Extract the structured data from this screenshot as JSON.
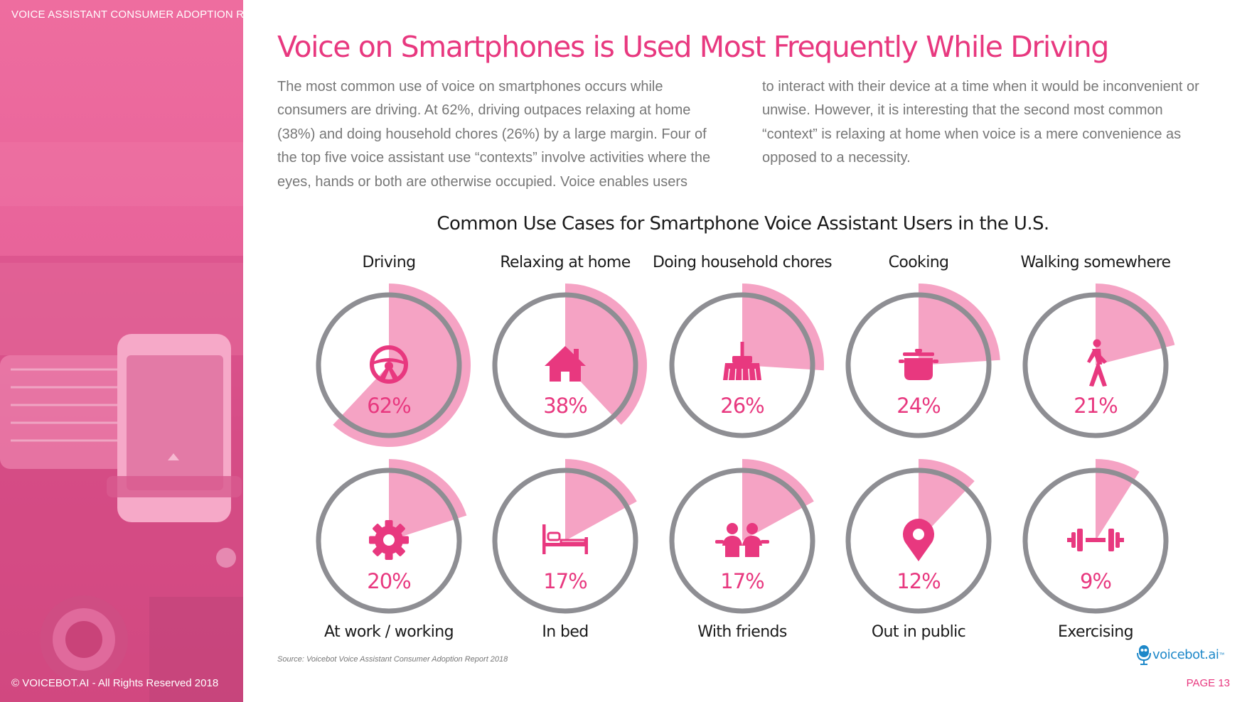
{
  "header": {
    "report_title": "VOICE ASSISTANT CONSUMER ADOPTION REPORT"
  },
  "page": {
    "title": "Voice on Smartphones is Used Most Frequently While Driving",
    "body_left": "The most common use of voice on smartphones occurs while consumers are driving. At 62%, driving outpaces relaxing at home (38%) and doing household chores (26%) by a large margin. Four of the top five voice assistant use “contexts” involve activities where the eyes, hands or both are otherwise occupied. Voice enables users",
    "body_right": "to interact with their device at a time when it would be inconvenient or unwise. However, it is interesting that the second most common “context” is relaxing at home when voice is a mere convenience as opposed to a necessity."
  },
  "colors": {
    "accent": "#e8387f",
    "wedge": "#f5a3c4",
    "ring": "#8e8e93",
    "icon": "#e8387f",
    "panel": "#e8639a"
  },
  "chart_data": {
    "type": "pie",
    "title": "Common Use Cases for Smartphone Voice Assistant Users in the U.S.",
    "unit": "%",
    "items": [
      {
        "label": "Driving",
        "value": 62,
        "display": "62%",
        "icon": "steering-wheel-icon",
        "label_position": "top"
      },
      {
        "label": "Relaxing at home",
        "value": 38,
        "display": "38%",
        "icon": "house-icon",
        "label_position": "top"
      },
      {
        "label": "Doing household chores",
        "value": 26,
        "display": "26%",
        "icon": "broom-icon",
        "label_position": "top"
      },
      {
        "label": "Cooking",
        "value": 24,
        "display": "24%",
        "icon": "cooking-pot-icon",
        "label_position": "top"
      },
      {
        "label": "Walking somewhere",
        "value": 21,
        "display": "21%",
        "icon": "walking-person-icon",
        "label_position": "top"
      },
      {
        "label": "At work / working",
        "value": 20,
        "display": "20%",
        "icon": "gear-icon",
        "label_position": "bottom"
      },
      {
        "label": "In bed",
        "value": 17,
        "display": "17%",
        "icon": "bed-icon",
        "label_position": "bottom"
      },
      {
        "label": "With friends",
        "value": 17,
        "display": "17%",
        "icon": "friends-icon",
        "label_position": "bottom"
      },
      {
        "label": "Out in public",
        "value": 12,
        "display": "12%",
        "icon": "map-pin-icon",
        "label_position": "bottom"
      },
      {
        "label": "Exercising",
        "value": 9,
        "display": "9%",
        "icon": "dumbbell-icon",
        "label_position": "bottom"
      }
    ]
  },
  "footer": {
    "source": "Source: Voicebot Voice Assistant Consumer Adoption Report 2018",
    "copyright": "© VOICEBOT.AI - All Rights Reserved 2018",
    "brand": "voicebot.ai",
    "brand_tm": "™",
    "page_number": "PAGE 13"
  }
}
